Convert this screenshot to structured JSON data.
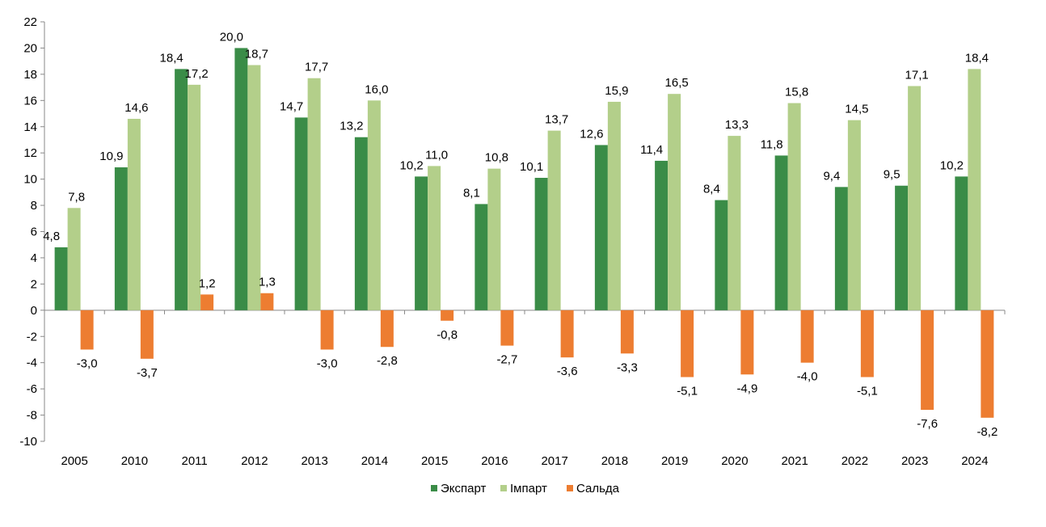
{
  "chart_data": {
    "type": "bar",
    "categories": [
      "2005",
      "2010",
      "2011",
      "2012",
      "2013",
      "2014",
      "2015",
      "2016",
      "2017",
      "2018",
      "2019",
      "2020",
      "2021",
      "2022",
      "2023",
      "2024"
    ],
    "series": [
      {
        "name": "Экспарт",
        "color": "#3a8c47",
        "values": [
          4.8,
          10.9,
          18.4,
          20.0,
          14.7,
          13.2,
          10.2,
          8.1,
          10.1,
          12.6,
          11.4,
          8.4,
          11.8,
          9.4,
          9.5,
          10.2
        ],
        "labels": [
          "4,8",
          "10,9",
          "18,4",
          "20,0",
          "14,7",
          "13,2",
          "10,2",
          "8,1",
          "10,1",
          "12,6",
          "11,4",
          "8,4",
          "11,8",
          "9,4",
          "9,5",
          "10,2"
        ]
      },
      {
        "name": "Імпарт",
        "color": "#b3cf8a",
        "values": [
          7.8,
          14.6,
          17.2,
          18.7,
          17.7,
          16.0,
          11.0,
          10.8,
          13.7,
          15.9,
          16.5,
          13.3,
          15.8,
          14.5,
          17.1,
          18.4
        ],
        "labels": [
          "7,8",
          "14,6",
          "17,2",
          "18,7",
          "17,7",
          "16,0",
          "11,0",
          "10,8",
          "13,7",
          "15,9",
          "16,5",
          "13,3",
          "15,8",
          "14,5",
          "17,1",
          "18,4"
        ]
      },
      {
        "name": "Сальда",
        "color": "#ed7d31",
        "values": [
          -3.0,
          -3.7,
          1.2,
          1.3,
          -3.0,
          -2.8,
          -0.8,
          -2.7,
          -3.6,
          -3.3,
          -5.1,
          -4.9,
          -4.0,
          -5.1,
          -7.6,
          -8.2
        ],
        "labels": [
          "-3,0",
          "-3,7",
          "1,2",
          "1,3",
          "-3,0",
          "-2,8",
          "-0,8",
          "-2,7",
          "-3,6",
          "-3,3",
          "-5,1",
          "-4,9",
          "-4,0",
          "-5,1",
          "-7,6",
          "-8,2"
        ]
      }
    ],
    "ylim": [
      -10,
      22
    ],
    "yticks": [
      22,
      20,
      18,
      16,
      14,
      12,
      10,
      8,
      6,
      4,
      2,
      0,
      -2,
      -4,
      -6,
      -8,
      -10
    ],
    "grid": false,
    "legend": "bottom-center"
  }
}
